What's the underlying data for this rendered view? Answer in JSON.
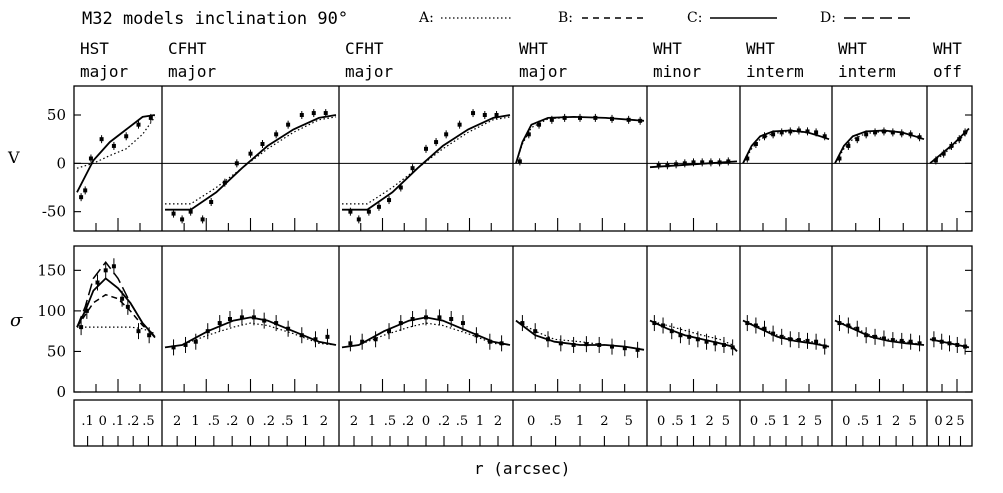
{
  "chart_data": {
    "type": "line",
    "title": "M32 models inclination 90°",
    "legend": [
      {
        "key": "A:",
        "style": "dotted"
      },
      {
        "key": "B:",
        "style": "short-dashed"
      },
      {
        "key": "C:",
        "style": "solid"
      },
      {
        "key": "D:",
        "style": "long-dashed"
      }
    ],
    "xlabel": "r (arcsec)",
    "rows": [
      {
        "ylabel": "V",
        "ylim": [
          -70,
          80
        ],
        "yticks": [
          "50",
          "0",
          "-50"
        ]
      },
      {
        "ylabel": "σ",
        "ylim": [
          0,
          180
        ],
        "yticks": [
          "150",
          "100",
          "50",
          "0"
        ]
      }
    ],
    "panels": [
      {
        "telescope": "HST",
        "axis": "major",
        "xticks": [
          ".1",
          "0",
          ".1",
          ".2",
          ".5"
        ],
        "V": {
          "data_x": [
            0.05,
            0.1,
            0.17,
            0.3,
            0.45,
            0.6,
            0.75,
            0.9
          ],
          "data_y": [
            -35,
            -28,
            5,
            25,
            18,
            28,
            40,
            47
          ],
          "model_x": [
            0,
            0.2,
            0.4,
            0.6,
            0.8,
            0.95
          ],
          "model_A": [
            -5,
            0,
            8,
            15,
            30,
            48
          ],
          "model_C": [
            -30,
            3,
            22,
            35,
            48,
            50
          ]
        },
        "sigma": {
          "data_x": [
            0.05,
            0.12,
            0.25,
            0.35,
            0.45,
            0.55,
            0.62,
            0.75,
            0.88
          ],
          "data_y": [
            80,
            100,
            135,
            150,
            155,
            115,
            105,
            75,
            70
          ],
          "model_x": [
            0,
            0.1,
            0.2,
            0.35,
            0.5,
            0.65,
            0.8,
            0.95
          ],
          "model_A": [
            80,
            80,
            80,
            80,
            80,
            80,
            78,
            72
          ],
          "model_B": [
            80,
            95,
            110,
            120,
            115,
            100,
            82,
            70
          ],
          "model_C": [
            80,
            100,
            125,
            140,
            128,
            110,
            85,
            68
          ],
          "model_D": [
            80,
            105,
            140,
            160,
            140,
            110,
            85,
            67
          ]
        }
      },
      {
        "telescope": "CFHT",
        "axis": "major",
        "xticks": [
          "2",
          "1",
          ".5",
          ".2",
          "0",
          ".2",
          ".5",
          "1",
          "2"
        ],
        "V": {
          "data_x": [
            0.05,
            0.1,
            0.15,
            0.22,
            0.27,
            0.35,
            0.42,
            0.5,
            0.57,
            0.65,
            0.72,
            0.8,
            0.87,
            0.94
          ],
          "data_y": [
            -52,
            -58,
            -50,
            -58,
            -40,
            -20,
            0,
            10,
            20,
            30,
            40,
            50,
            52,
            52
          ],
          "model_x": [
            0,
            0.15,
            0.3,
            0.45,
            0.6,
            0.75,
            0.9,
            1.0
          ],
          "model_A": [
            -42,
            -42,
            -25,
            -5,
            15,
            32,
            45,
            48
          ],
          "model_C": [
            -48,
            -48,
            -30,
            -5,
            18,
            35,
            47,
            50
          ]
        },
        "sigma": {
          "data_x": [
            0.05,
            0.12,
            0.18,
            0.25,
            0.32,
            0.38,
            0.45,
            0.52,
            0.58,
            0.65,
            0.72,
            0.8,
            0.88,
            0.95
          ],
          "data_y": [
            55,
            58,
            62,
            75,
            85,
            90,
            92,
            92,
            88,
            85,
            78,
            70,
            65,
            68
          ],
          "model_x": [
            0,
            0.1,
            0.25,
            0.4,
            0.5,
            0.6,
            0.75,
            0.9,
            1.0
          ],
          "model_A": [
            55,
            58,
            70,
            80,
            85,
            82,
            72,
            60,
            58
          ],
          "model_C": [
            55,
            58,
            75,
            88,
            92,
            88,
            75,
            62,
            58
          ]
        }
      },
      {
        "telescope": "CFHT",
        "axis": "major",
        "xticks": [
          "2",
          "1",
          ".5",
          ".2",
          "0",
          ".2",
          ".5",
          "1",
          "2"
        ],
        "V": {
          "data_x": [
            0.05,
            0.1,
            0.16,
            0.22,
            0.28,
            0.35,
            0.42,
            0.5,
            0.56,
            0.62,
            0.7,
            0.78,
            0.85,
            0.92
          ],
          "data_y": [
            -50,
            -58,
            -50,
            -45,
            -38,
            -25,
            -5,
            15,
            22,
            30,
            40,
            52,
            50,
            50
          ],
          "model_x": [
            0,
            0.15,
            0.3,
            0.45,
            0.6,
            0.75,
            0.9,
            1.0
          ],
          "model_A": [
            -42,
            -42,
            -25,
            -5,
            15,
            32,
            45,
            48
          ],
          "model_C": [
            -48,
            -48,
            -30,
            -5,
            18,
            35,
            47,
            50
          ]
        },
        "sigma": {
          "data_x": [
            0.05,
            0.12,
            0.2,
            0.28,
            0.35,
            0.42,
            0.5,
            0.58,
            0.65,
            0.72,
            0.8,
            0.88,
            0.95
          ],
          "data_y": [
            60,
            62,
            65,
            75,
            85,
            90,
            92,
            92,
            90,
            85,
            70,
            62,
            60
          ],
          "model_x": [
            0,
            0.1,
            0.25,
            0.4,
            0.5,
            0.6,
            0.75,
            0.9,
            1.0
          ],
          "model_A": [
            55,
            58,
            70,
            80,
            85,
            82,
            72,
            60,
            58
          ],
          "model_C": [
            55,
            58,
            75,
            88,
            92,
            88,
            75,
            62,
            58
          ]
        }
      },
      {
        "telescope": "WHT",
        "axis": "major",
        "xticks": [
          "0",
          ".5",
          "1",
          "2",
          "5"
        ],
        "V": {
          "data_x": [
            0.03,
            0.1,
            0.18,
            0.28,
            0.38,
            0.5,
            0.62,
            0.75,
            0.88,
            0.97
          ],
          "data_y": [
            2,
            30,
            40,
            45,
            47,
            47,
            47,
            46,
            45,
            44
          ],
          "model_x": [
            0,
            0.05,
            0.12,
            0.25,
            0.45,
            0.7,
            1.0
          ],
          "model_A": [
            0,
            20,
            37,
            46,
            48,
            47,
            44
          ],
          "model_C": [
            0,
            22,
            40,
            47,
            48,
            47,
            44
          ]
        },
        "sigma": {
          "data_x": [
            0.05,
            0.15,
            0.25,
            0.35,
            0.45,
            0.55,
            0.65,
            0.75,
            0.85,
            0.95
          ],
          "data_y": [
            85,
            75,
            65,
            60,
            58,
            59,
            58,
            56,
            54,
            52
          ],
          "model_x": [
            0,
            0.15,
            0.3,
            0.5,
            0.7,
            0.85,
            1.0
          ],
          "model_A": [
            88,
            75,
            65,
            62,
            58,
            56,
            52
          ],
          "model_C": [
            88,
            70,
            62,
            58,
            58,
            56,
            52
          ]
        }
      },
      {
        "telescope": "WHT",
        "axis": "minor",
        "xticks": [
          "0",
          ".5",
          "1",
          "2",
          "5"
        ],
        "V": {
          "data_x": [
            0.1,
            0.2,
            0.3,
            0.4,
            0.5,
            0.6,
            0.7,
            0.8,
            0.9
          ],
          "data_y": [
            -2,
            -2,
            -1,
            0,
            1,
            1,
            1,
            1,
            2
          ],
          "model_x": [
            0,
            0.5,
            1.0
          ],
          "model_A": [
            -4,
            -1,
            2
          ],
          "model_C": [
            -4,
            -1,
            2
          ]
        },
        "sigma": {
          "data_x": [
            0.05,
            0.15,
            0.25,
            0.35,
            0.45,
            0.55,
            0.65,
            0.75,
            0.85,
            0.95
          ],
          "data_y": [
            85,
            82,
            75,
            70,
            68,
            65,
            62,
            60,
            58,
            55
          ],
          "model_x": [
            0,
            0.2,
            0.4,
            0.6,
            0.8,
            0.95,
            1.0
          ],
          "model_A": [
            88,
            82,
            76,
            70,
            65,
            58,
            50
          ],
          "model_C": [
            88,
            78,
            70,
            65,
            60,
            56,
            50
          ]
        }
      },
      {
        "telescope": "WHT",
        "axis": "interm",
        "xticks": [
          "0",
          ".5",
          "1",
          "2",
          "5"
        ],
        "V": {
          "data_x": [
            0.05,
            0.15,
            0.25,
            0.35,
            0.45,
            0.55,
            0.65,
            0.75,
            0.85,
            0.95
          ],
          "data_y": [
            5,
            20,
            28,
            30,
            32,
            33,
            34,
            33,
            32,
            28
          ],
          "model_x": [
            0,
            0.1,
            0.2,
            0.35,
            0.55,
            0.75,
            0.9,
            1.0
          ],
          "model_A": [
            0,
            15,
            25,
            31,
            33,
            32,
            28,
            25
          ],
          "model_C": [
            0,
            18,
            28,
            33,
            34,
            32,
            28,
            25
          ]
        },
        "sigma": {
          "data_x": [
            0.05,
            0.15,
            0.25,
            0.35,
            0.45,
            0.55,
            0.65,
            0.75,
            0.85,
            0.95
          ],
          "data_y": [
            85,
            82,
            78,
            72,
            68,
            65,
            64,
            63,
            62,
            56
          ],
          "model_x": [
            0,
            0.2,
            0.4,
            0.6,
            0.8,
            1.0
          ],
          "model_A": [
            88,
            80,
            70,
            65,
            62,
            56
          ],
          "model_C": [
            88,
            78,
            68,
            63,
            60,
            56
          ]
        }
      },
      {
        "telescope": "WHT",
        "axis": "interm",
        "xticks": [
          "0",
          ".5",
          "1",
          "2",
          "5"
        ],
        "V": {
          "data_x": [
            0.05,
            0.15,
            0.25,
            0.35,
            0.45,
            0.55,
            0.65,
            0.75,
            0.85,
            0.95
          ],
          "data_y": [
            5,
            18,
            25,
            30,
            32,
            33,
            32,
            31,
            30,
            27
          ],
          "model_x": [
            0,
            0.1,
            0.2,
            0.35,
            0.55,
            0.75,
            0.9,
            1.0
          ],
          "model_A": [
            0,
            15,
            25,
            31,
            33,
            32,
            28,
            25
          ],
          "model_C": [
            0,
            18,
            28,
            33,
            34,
            32,
            28,
            25
          ]
        },
        "sigma": {
          "data_x": [
            0.05,
            0.15,
            0.25,
            0.35,
            0.45,
            0.55,
            0.65,
            0.75,
            0.85,
            0.95
          ],
          "data_y": [
            85,
            82,
            78,
            70,
            68,
            66,
            64,
            63,
            62,
            60
          ],
          "model_x": [
            0,
            0.2,
            0.4,
            0.6,
            0.8,
            1.0
          ],
          "model_A": [
            88,
            80,
            70,
            65,
            62,
            58
          ],
          "model_C": [
            88,
            78,
            68,
            63,
            60,
            58
          ]
        }
      },
      {
        "telescope": "WHT",
        "axis": "off",
        "xticks": [
          "0",
          "2",
          "5"
        ],
        "V": {
          "data_x": [
            0.15,
            0.35,
            0.55,
            0.75,
            0.9
          ],
          "data_y": [
            3,
            10,
            18,
            25,
            32
          ],
          "model_x": [
            0,
            0.3,
            0.6,
            0.9,
            1.0
          ],
          "model_A": [
            0,
            8,
            18,
            30,
            35
          ],
          "model_C": [
            0,
            10,
            20,
            32,
            36
          ]
        },
        "sigma": {
          "data_x": [
            0.1,
            0.3,
            0.5,
            0.7,
            0.9
          ],
          "data_y": [
            65,
            62,
            60,
            58,
            56
          ],
          "model_x": [
            0,
            0.5,
            1.0
          ],
          "model_A": [
            65,
            60,
            55
          ],
          "model_C": [
            65,
            60,
            55
          ]
        }
      }
    ]
  }
}
